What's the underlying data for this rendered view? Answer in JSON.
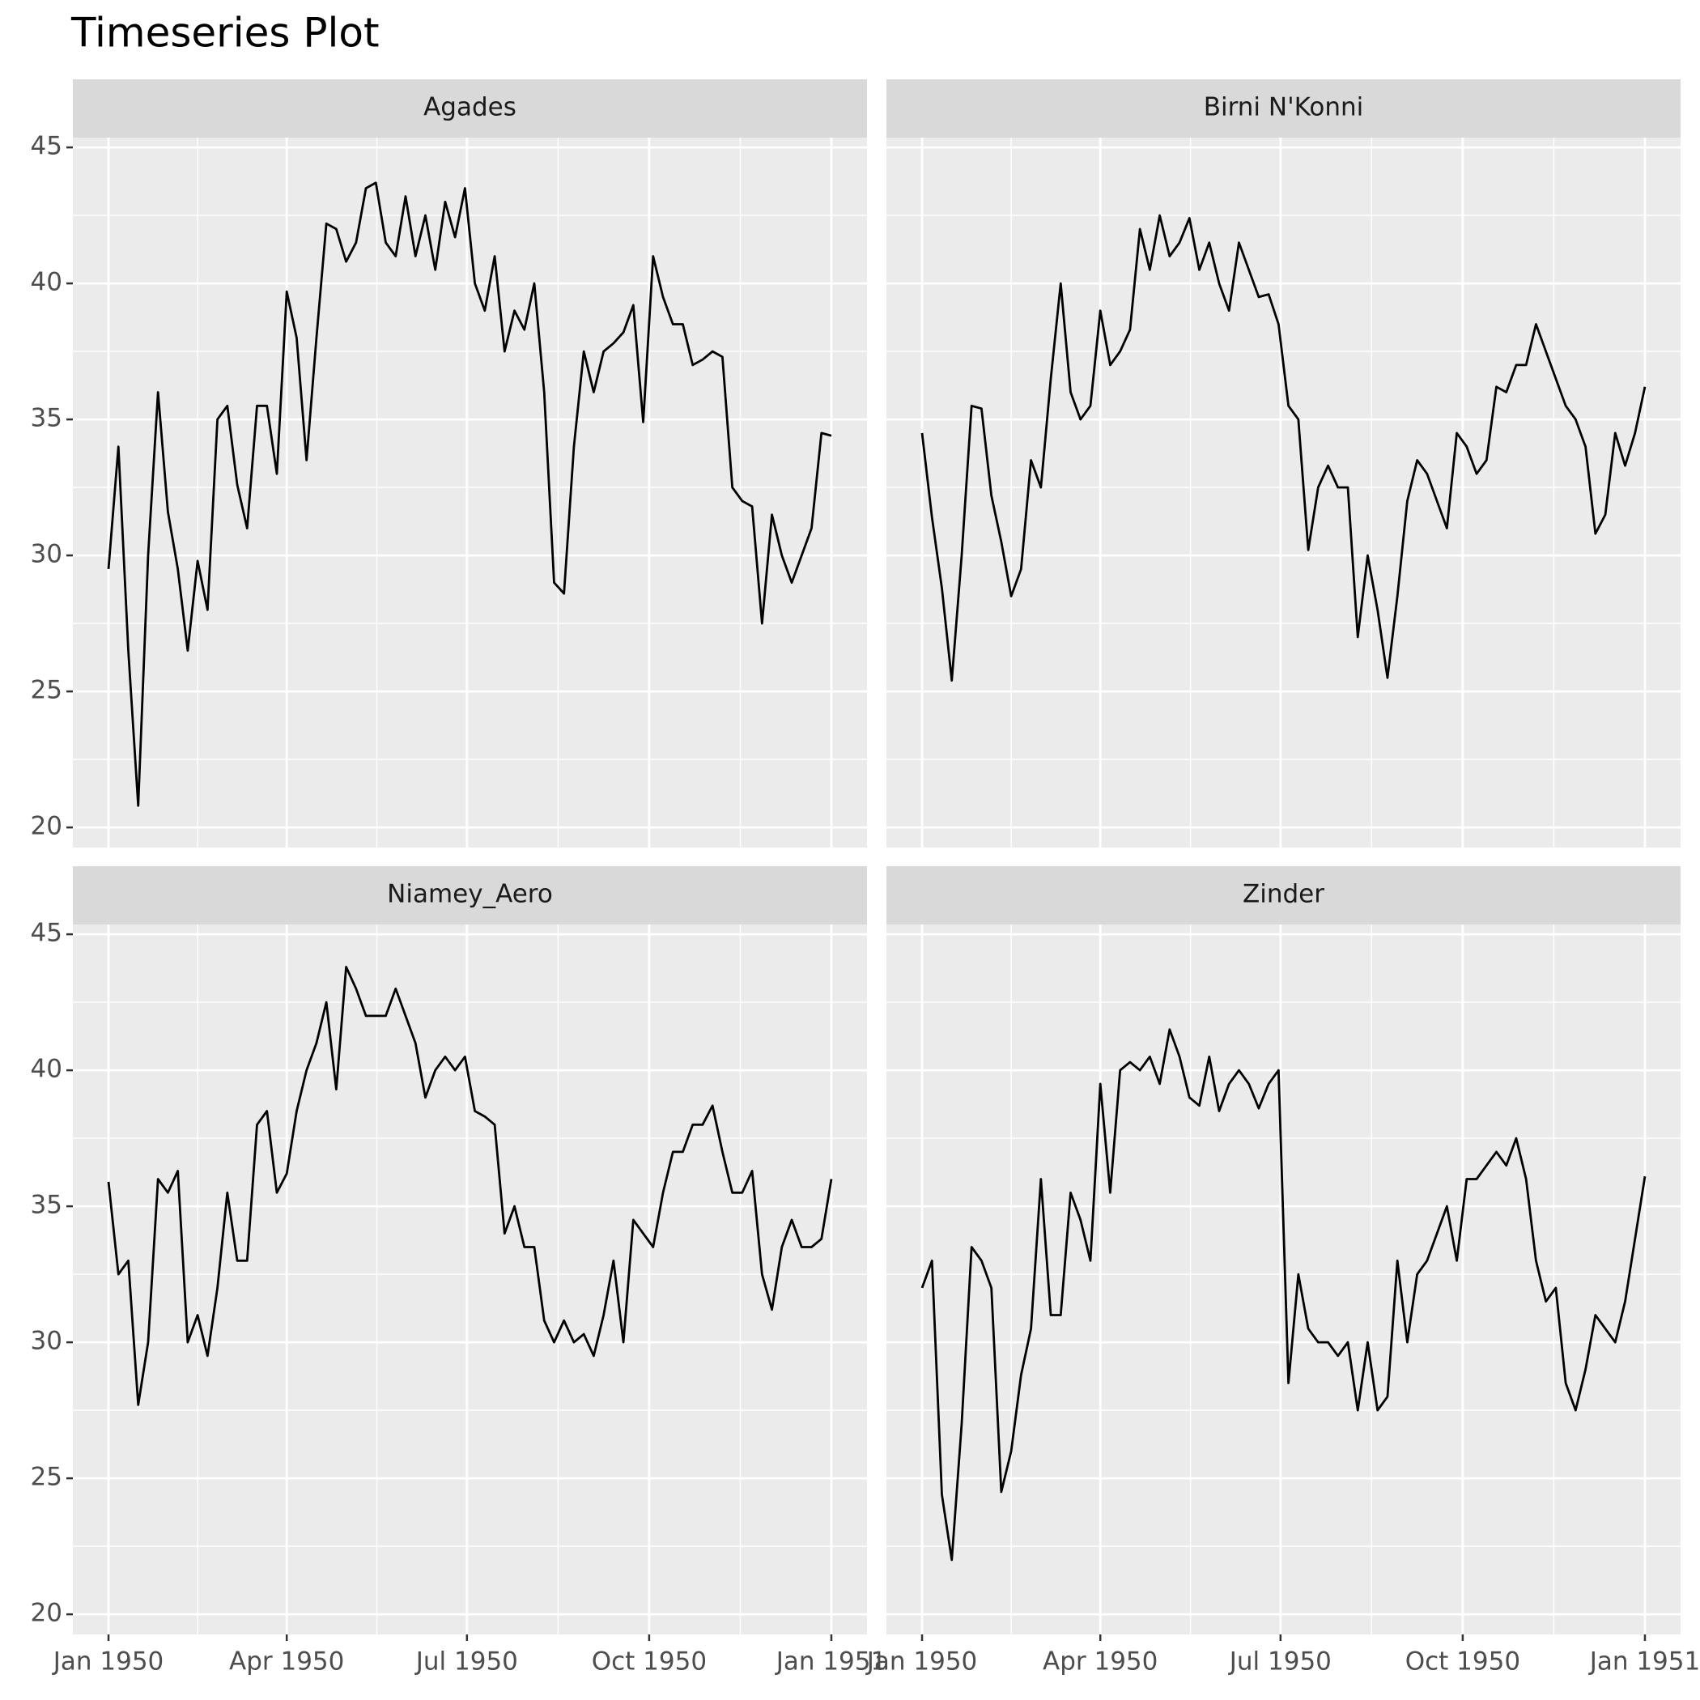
{
  "chart_data": {
    "type": "line",
    "title": "Timeseries Plot",
    "facet_columns": 2,
    "grid": true,
    "x": [
      0,
      5,
      10,
      15,
      20,
      25,
      30,
      35,
      40,
      45,
      50,
      55,
      60,
      65,
      70,
      75,
      80,
      85,
      90,
      95,
      100,
      105,
      110,
      115,
      120,
      125,
      130,
      135,
      140,
      145,
      150,
      155,
      160,
      165,
      170,
      175,
      180,
      185,
      190,
      195,
      200,
      205,
      210,
      215,
      220,
      225,
      230,
      235,
      240,
      245,
      250,
      255,
      260,
      265,
      270,
      275,
      280,
      285,
      290,
      295,
      300,
      305,
      310,
      315,
      320,
      325,
      330,
      335,
      340,
      345,
      350,
      355,
      360,
      365
    ],
    "xlim": [
      -18,
      383
    ],
    "xticks": [
      {
        "value": 0,
        "label": "Jan 1950"
      },
      {
        "value": 90,
        "label": "Apr 1950"
      },
      {
        "value": 181,
        "label": "Jul 1950"
      },
      {
        "value": 273,
        "label": "Oct 1950"
      },
      {
        "value": 365,
        "label": "Jan 1951"
      }
    ],
    "ylim": [
      19.26,
      45.36
    ],
    "yticks": [
      20,
      25,
      30,
      35,
      40,
      45
    ],
    "series": [
      {
        "name": "Agades",
        "color": "#000000",
        "values": [
          29.5,
          34,
          26.5,
          20.8,
          30,
          36,
          31.6,
          29.5,
          26.5,
          29.8,
          28,
          35,
          35.5,
          32.6,
          31,
          35.5,
          35.5,
          33,
          39.7,
          38,
          33.5,
          38,
          42.2,
          42,
          40.8,
          41.5,
          43.5,
          43.7,
          41.5,
          41,
          43.2,
          41,
          42.5,
          40.5,
          43,
          41.7,
          43.5,
          40,
          39,
          41,
          37.5,
          39,
          38.3,
          40,
          36,
          29,
          28.6,
          34,
          37.5,
          36,
          37.5,
          37.8,
          38.2,
          39.2,
          34.9,
          41,
          39.5,
          38.5,
          38.5,
          37,
          37.2,
          37.5,
          37.3,
          32.5,
          32,
          31.8,
          27.5,
          31.5,
          30,
          29,
          30,
          31,
          34.5,
          34.4
        ]
      },
      {
        "name": "Birni N'Konni",
        "color": "#000000",
        "values": [
          34.5,
          31.4,
          28.8,
          25.4,
          30,
          35.5,
          35.4,
          32.2,
          30.5,
          28.5,
          29.5,
          33.5,
          32.5,
          36.5,
          40,
          36,
          35,
          35.5,
          39,
          37,
          37.5,
          38.3,
          42,
          40.5,
          42.5,
          41,
          41.5,
          42.4,
          40.5,
          41.5,
          40,
          39,
          41.5,
          40.5,
          39.5,
          39.6,
          38.5,
          35.5,
          35,
          30.2,
          32.5,
          33.3,
          32.5,
          32.5,
          27,
          30,
          28,
          25.5,
          28.5,
          32,
          33.5,
          33,
          32,
          31,
          34.5,
          34,
          33,
          33.5,
          36.2,
          36,
          37,
          37,
          38.5,
          37.5,
          36.5,
          35.5,
          35,
          34,
          30.8,
          31.5,
          34.5,
          33.3,
          34.5,
          36.2
        ]
      },
      {
        "name": "Niamey_Aero",
        "color": "#000000",
        "values": [
          35.9,
          32.5,
          33,
          27.7,
          30,
          36,
          35.5,
          36.3,
          30,
          31,
          29.5,
          32,
          35.5,
          33,
          33,
          38,
          38.5,
          35.5,
          36.2,
          38.5,
          40,
          41,
          42.5,
          39.3,
          43.8,
          43,
          42,
          42,
          42,
          43,
          42,
          41,
          39,
          40,
          40.5,
          40,
          40.5,
          38.5,
          38.3,
          38,
          34,
          35,
          33.5,
          33.5,
          30.8,
          30,
          30.8,
          30,
          30.3,
          29.5,
          31,
          33,
          30,
          34.5,
          34,
          33.5,
          35.5,
          37,
          37,
          38,
          38,
          38.7,
          37,
          35.5,
          35.5,
          36.3,
          32.5,
          31.2,
          33.5,
          34.5,
          33.5,
          33.5,
          33.8,
          36
        ]
      },
      {
        "name": "Zinder",
        "color": "#000000",
        "values": [
          32,
          33,
          24.4,
          22,
          27,
          33.5,
          33,
          32,
          24.5,
          26,
          28.8,
          30.5,
          36,
          31,
          31,
          35.5,
          34.5,
          33,
          39.5,
          35.5,
          40,
          40.3,
          40,
          40.5,
          39.5,
          41.5,
          40.5,
          39,
          38.7,
          40.5,
          38.5,
          39.5,
          40,
          39.5,
          38.6,
          39.5,
          40,
          28.5,
          32.5,
          30.5,
          30,
          30,
          29.5,
          30,
          27.5,
          30,
          27.5,
          28,
          33,
          30,
          32.5,
          33,
          34,
          35,
          33,
          36,
          36,
          36.5,
          37,
          36.5,
          37.5,
          36,
          33,
          31.5,
          32,
          28.5,
          27.5,
          29,
          31,
          30.5,
          30,
          31.5,
          33.8,
          36.1
        ]
      }
    ]
  }
}
